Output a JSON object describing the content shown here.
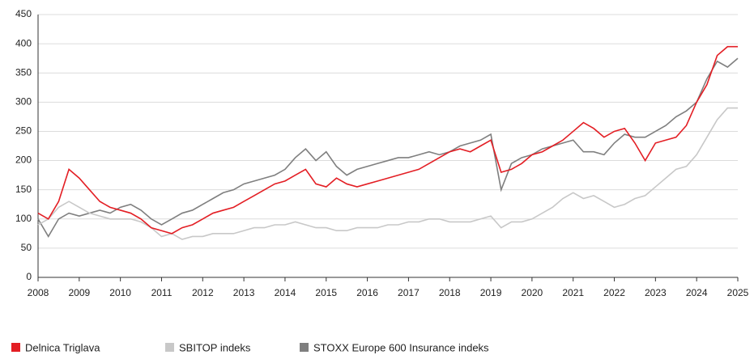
{
  "chart_data": {
    "type": "line",
    "x": [
      2008,
      2008.25,
      2008.5,
      2008.75,
      2009,
      2009.25,
      2009.5,
      2009.75,
      2010,
      2010.25,
      2010.5,
      2010.75,
      2011,
      2011.25,
      2011.5,
      2011.75,
      2012,
      2012.25,
      2012.5,
      2012.75,
      2013,
      2013.25,
      2013.5,
      2013.75,
      2014,
      2014.25,
      2014.5,
      2014.75,
      2015,
      2015.25,
      2015.5,
      2015.75,
      2016,
      2016.25,
      2016.5,
      2016.75,
      2017,
      2017.25,
      2017.5,
      2017.75,
      2018,
      2018.25,
      2018.5,
      2018.75,
      2019,
      2019.25,
      2019.5,
      2019.75,
      2020,
      2020.25,
      2020.5,
      2020.75,
      2021,
      2021.25,
      2021.5,
      2021.75,
      2022,
      2022.25,
      2022.5,
      2022.75,
      2023,
      2023.25,
      2023.5,
      2023.75,
      2024,
      2024.25,
      2024.5,
      2024.75,
      2025
    ],
    "series": [
      {
        "name": "Delnica Triglava",
        "color": "#e31e24",
        "values": [
          110,
          100,
          130,
          185,
          170,
          150,
          130,
          120,
          115,
          110,
          100,
          85,
          80,
          75,
          85,
          90,
          100,
          110,
          115,
          120,
          130,
          140,
          150,
          160,
          165,
          175,
          185,
          160,
          155,
          170,
          160,
          155,
          160,
          165,
          170,
          175,
          180,
          185,
          195,
          205,
          215,
          220,
          215,
          225,
          235,
          180,
          185,
          195,
          210,
          215,
          225,
          235,
          250,
          265,
          255,
          240,
          250,
          255,
          230,
          200,
          230,
          235,
          240,
          260,
          300,
          330,
          380,
          395,
          395
        ]
      },
      {
        "name": "SBITOP indeks",
        "color": "#c8c8c8",
        "values": [
          90,
          100,
          120,
          130,
          120,
          110,
          105,
          100,
          100,
          100,
          95,
          85,
          70,
          75,
          65,
          70,
          70,
          75,
          75,
          75,
          80,
          85,
          85,
          90,
          90,
          95,
          90,
          85,
          85,
          80,
          80,
          85,
          85,
          85,
          90,
          90,
          95,
          95,
          100,
          100,
          95,
          95,
          95,
          100,
          105,
          85,
          95,
          95,
          100,
          110,
          120,
          135,
          145,
          135,
          140,
          130,
          120,
          125,
          135,
          140,
          155,
          170,
          185,
          190,
          210,
          240,
          270,
          290,
          290
        ]
      },
      {
        "name": "STOXX Europe 600 Insurance indeks",
        "color": "#7f7f7f",
        "values": [
          100,
          70,
          100,
          110,
          105,
          110,
          115,
          110,
          120,
          125,
          115,
          100,
          90,
          100,
          110,
          115,
          125,
          135,
          145,
          150,
          160,
          165,
          170,
          175,
          185,
          205,
          220,
          200,
          215,
          190,
          175,
          185,
          190,
          195,
          200,
          205,
          205,
          210,
          215,
          210,
          215,
          225,
          230,
          235,
          245,
          150,
          195,
          205,
          210,
          220,
          225,
          230,
          235,
          215,
          215,
          210,
          230,
          245,
          240,
          240,
          250,
          260,
          275,
          285,
          300,
          340,
          370,
          360,
          375
        ]
      }
    ],
    "xlim": [
      2008,
      2025
    ],
    "xticks": [
      2008,
      2009,
      2010,
      2011,
      2012,
      2013,
      2014,
      2015,
      2016,
      2017,
      2018,
      2019,
      2020,
      2021,
      2022,
      2023,
      2024,
      2025
    ],
    "ylim": [
      0,
      450
    ],
    "yticks": [
      0,
      50,
      100,
      150,
      200,
      250,
      300,
      350,
      400,
      450
    ],
    "grid": true
  }
}
